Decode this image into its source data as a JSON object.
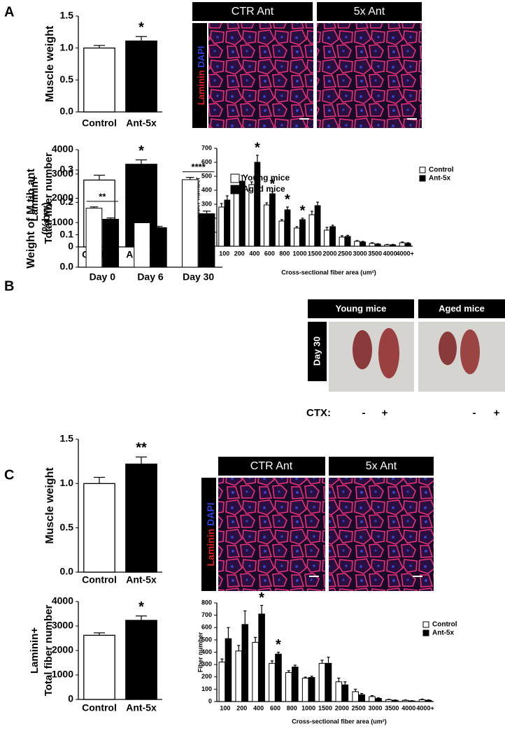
{
  "figure": {
    "panels": [
      "A",
      "B",
      "C"
    ],
    "a_images": {
      "headers": [
        "CTR Ant",
        "5x Ant"
      ],
      "stain": [
        "Laminin",
        "DAPI"
      ]
    },
    "b_photos": {
      "headers": [
        "Young mice",
        "Aged mice"
      ],
      "row": "Day 30",
      "ctx_label": "CTX:",
      "ctx": [
        "-",
        "+",
        "-",
        "+"
      ]
    },
    "c_images": {
      "headers": [
        "CTR Ant",
        "5x Ant"
      ],
      "stain": [
        "Laminin",
        "DAPI"
      ]
    }
  },
  "chart_data": [
    {
      "type": "bar",
      "ylabel": [
        "Muscle weight"
      ],
      "categories": [
        "Control",
        "Ant-5x"
      ],
      "values": [
        1.0,
        1.11
      ],
      "errors": [
        0.04,
        0.07
      ],
      "colors": [
        "#ffffff",
        "#000000"
      ],
      "significance": [
        null,
        "*"
      ],
      "ylim": [
        0,
        1.5
      ],
      "yticks": [
        {
          "value": 0,
          "label": "0.0"
        },
        0.5,
        {
          "value": 1,
          "label": "1.0"
        },
        1.5
      ]
    },
    {
      "type": "bar",
      "ylabel": [
        "Laminin+",
        "Total fiber number"
      ],
      "categories": [
        "Control",
        "Ant-5x"
      ],
      "values": [
        2750,
        3400
      ],
      "errors": [
        200,
        180
      ],
      "colors": [
        "#ffffff",
        "#000000"
      ],
      "significance": [
        null,
        "*"
      ],
      "ylim": [
        0,
        4000
      ],
      "yticks": [
        0,
        1000,
        2000,
        3000,
        4000
      ]
    },
    {
      "type": "grouped_bar",
      "ylabel": [
        "Fiber number"
      ],
      "xlabel": "Cross-sectional fiber area (um²)",
      "categories": [
        "100",
        "200",
        "400",
        "600",
        "800",
        "1000",
        "1500",
        "2000",
        "2500",
        "3000",
        "3500",
        "4000",
        "4000+"
      ],
      "series": [
        {
          "name": "Control",
          "color": "#ffffff",
          "values": [
            280,
            385,
            440,
            295,
            180,
            130,
            225,
            115,
            65,
            35,
            20,
            10,
            25
          ],
          "errors": [
            25,
            35,
            20,
            15,
            10,
            10,
            25,
            20,
            10,
            5,
            5,
            3,
            5
          ]
        },
        {
          "name": "Ant-5x",
          "color": "#000000",
          "values": [
            330,
            465,
            600,
            375,
            260,
            190,
            290,
            140,
            70,
            30,
            15,
            10,
            20
          ],
          "errors": [
            30,
            40,
            50,
            15,
            20,
            10,
            25,
            10,
            8,
            5,
            3,
            3,
            5
          ]
        }
      ],
      "significance": [
        null,
        null,
        "*",
        "*",
        "*",
        "*",
        null,
        null,
        null,
        null,
        null,
        null,
        null
      ],
      "ylim": [
        0,
        700
      ],
      "yticks": [
        0,
        100,
        200,
        300,
        400,
        500,
        600,
        700
      ],
      "legend": "right"
    },
    {
      "type": "grouped_bar",
      "ylabel": [
        "Weight of M tib ant",
        "(%bw)"
      ],
      "categories": [
        "Day 0",
        "Day 6",
        "Day 30"
      ],
      "series": [
        {
          "name": "Young mice",
          "color": "#ffffff",
          "values": [
            0.182,
            0.137,
            0.27
          ],
          "errors": [
            0.004,
            0.003,
            0.007
          ]
        },
        {
          "name": "Aged mice",
          "color": "#000000",
          "values": [
            0.148,
            0.122,
            0.165
          ],
          "errors": [
            0.004,
            0.004,
            0.008
          ]
        }
      ],
      "significance": [
        "**",
        null,
        "****"
      ],
      "brackets": true,
      "ylim": [
        0,
        0.3
      ],
      "yticks": [
        {
          "value": 0,
          "label": "0.0"
        },
        0.1,
        0.2,
        0.3
      ],
      "legend": "right"
    },
    {
      "type": "bar",
      "ylabel": [
        "Muscle weight"
      ],
      "categories": [
        "Control",
        "Ant-5x"
      ],
      "values": [
        1.0,
        1.22
      ],
      "errors": [
        0.07,
        0.08
      ],
      "colors": [
        "#ffffff",
        "#000000"
      ],
      "significance": [
        null,
        "**"
      ],
      "ylim": [
        0,
        1.5
      ],
      "yticks": [
        {
          "value": 0,
          "label": "0.0"
        },
        0.5,
        {
          "value": 1,
          "label": "1.0"
        },
        1.5
      ]
    },
    {
      "type": "bar",
      "ylabel": [
        "Laminin+",
        "Total fiber number"
      ],
      "categories": [
        "Control",
        "Ant-5x"
      ],
      "values": [
        2620,
        3230
      ],
      "errors": [
        100,
        180
      ],
      "colors": [
        "#ffffff",
        "#000000"
      ],
      "significance": [
        null,
        "*"
      ],
      "ylim": [
        0,
        4000
      ],
      "yticks": [
        0,
        1000,
        2000,
        3000,
        4000
      ]
    },
    {
      "type": "grouped_bar",
      "ylabel": [
        "Fiber number"
      ],
      "xlabel": "Cross-sectional fiber area (um²)",
      "categories": [
        "100",
        "200",
        "400",
        "600",
        "800",
        "1000",
        "1500",
        "2000",
        "2500",
        "3000",
        "3500",
        "4000",
        "4000+"
      ],
      "series": [
        {
          "name": "Control",
          "color": "#ffffff",
          "values": [
            320,
            410,
            480,
            310,
            235,
            190,
            310,
            160,
            80,
            40,
            15,
            10,
            15
          ],
          "errors": [
            25,
            45,
            40,
            20,
            15,
            8,
            25,
            30,
            20,
            8,
            3,
            3,
            5
          ]
        },
        {
          "name": "Ant-5x",
          "color": "#000000",
          "values": [
            510,
            625,
            710,
            385,
            280,
            195,
            310,
            135,
            55,
            25,
            10,
            5,
            10
          ],
          "errors": [
            90,
            110,
            70,
            15,
            15,
            10,
            50,
            25,
            10,
            5,
            3,
            2,
            3
          ]
        }
      ],
      "significance": [
        null,
        null,
        "*",
        "*",
        null,
        null,
        null,
        null,
        null,
        null,
        null,
        null,
        null
      ],
      "ylim": [
        0,
        800
      ],
      "yticks": [
        0,
        100,
        200,
        300,
        400,
        500,
        600,
        700,
        800
      ],
      "legend": "right"
    }
  ]
}
